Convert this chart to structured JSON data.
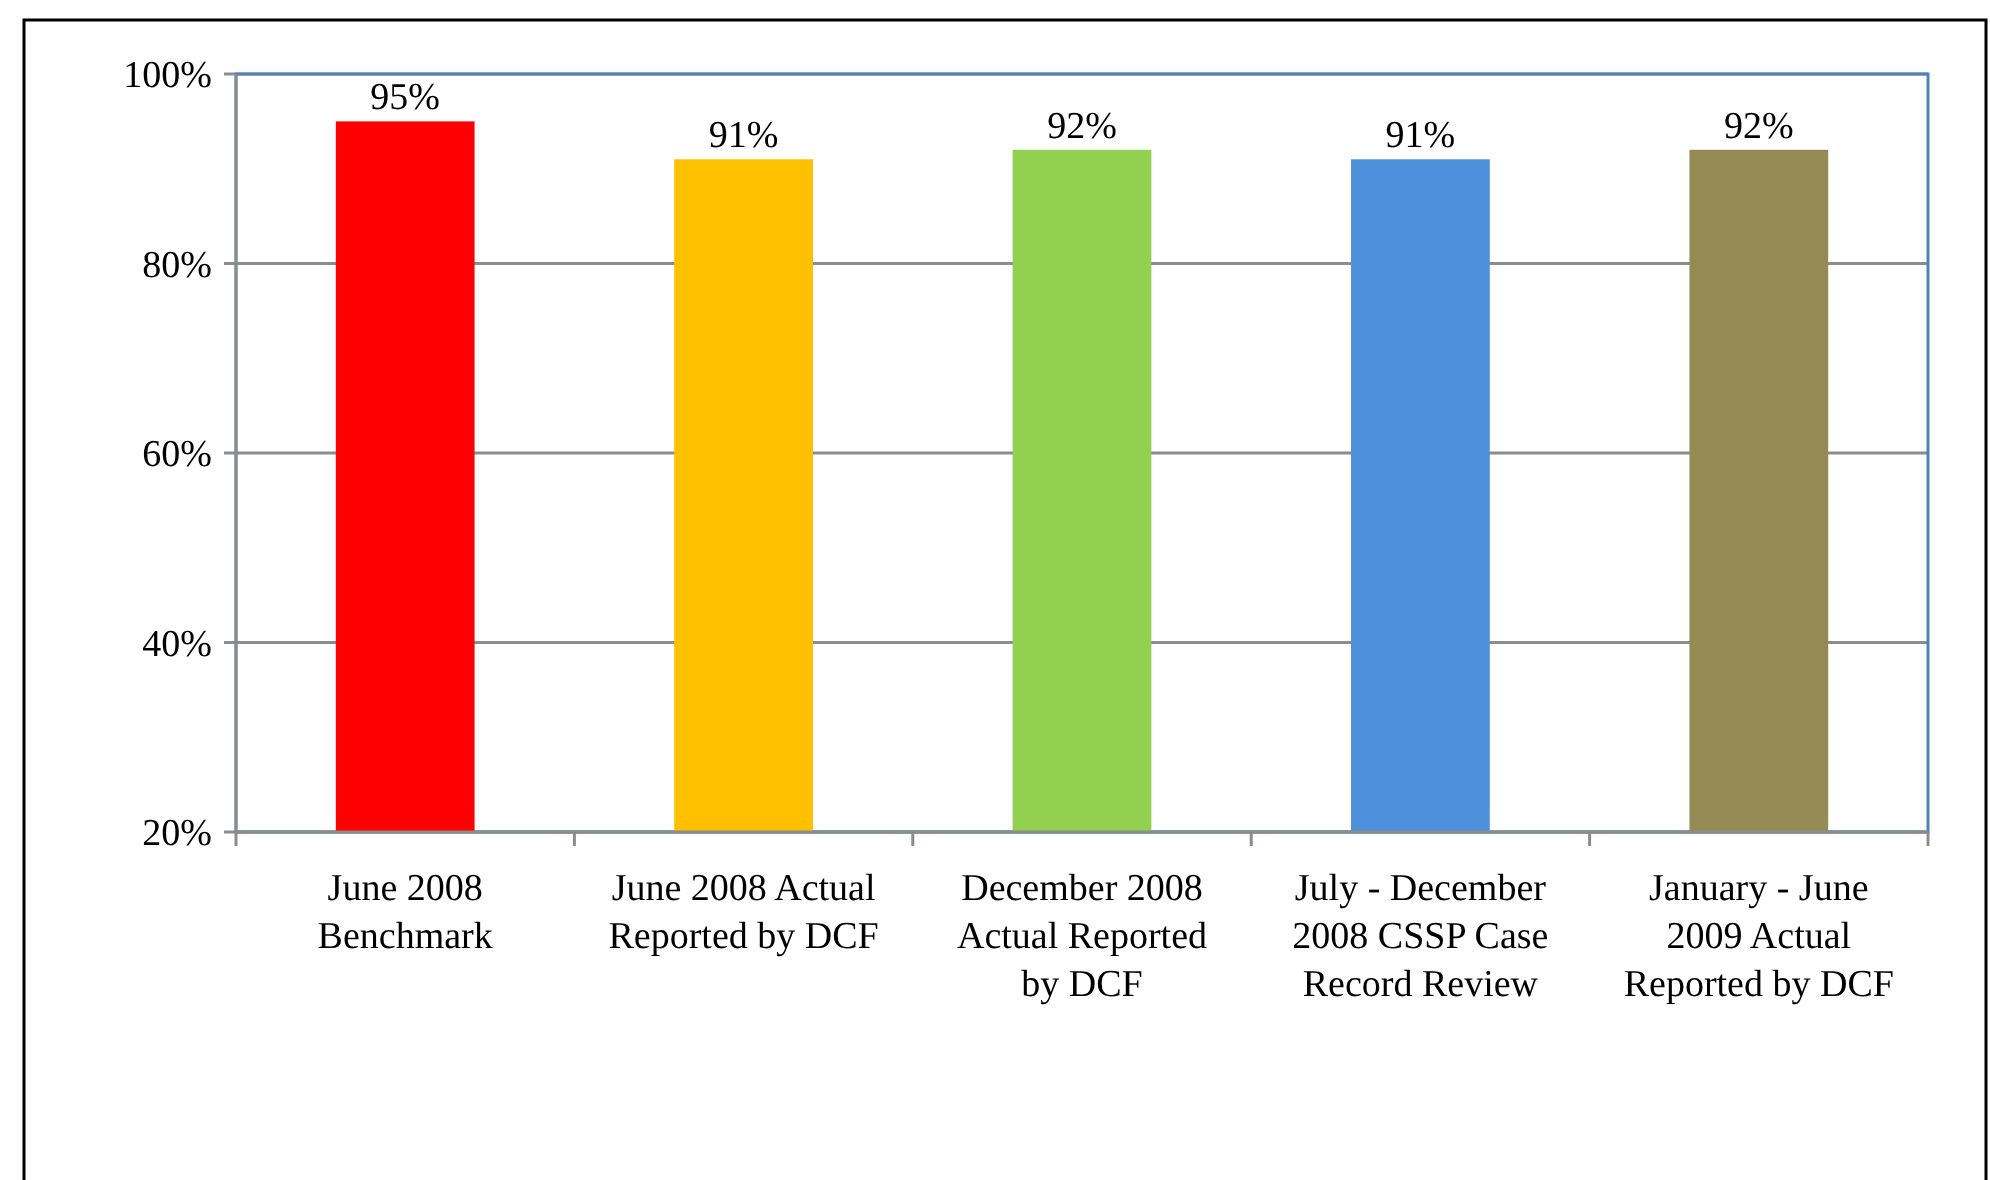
{
  "chart_data": {
    "type": "bar",
    "categories": [
      "June 2008 Benchmark",
      "June 2008 Actual Reported by DCF",
      "December 2008 Actual Reported by DCF",
      "July - December 2008 CSSP Case Record Review",
      "January - June 2009 Actual Reported by DCF"
    ],
    "values": [
      95,
      91,
      92,
      91,
      92
    ],
    "colors": [
      "#ff0000",
      "#ffc000",
      "#92d050",
      "#4f90dd",
      "#948a54"
    ],
    "ylim": [
      20,
      100
    ],
    "yticks": [
      {
        "value": 20,
        "label": "20%"
      },
      {
        "value": 40,
        "label": "40%"
      },
      {
        "value": 60,
        "label": "60%"
      },
      {
        "value": 80,
        "label": "80%"
      },
      {
        "value": 100,
        "label": "100%"
      }
    ],
    "value_labels": [
      "95%",
      "91%",
      "92%",
      "91%",
      "92%"
    ],
    "grid": "y"
  }
}
